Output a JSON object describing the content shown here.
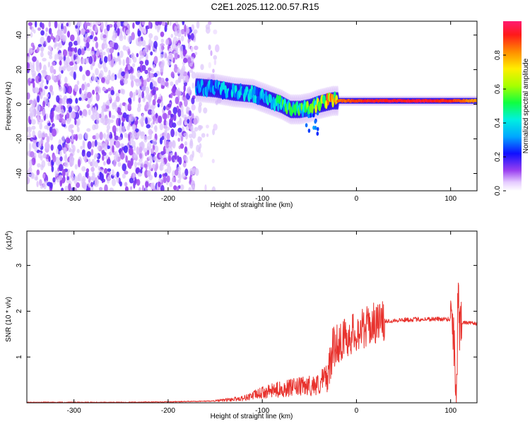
{
  "title": "C2E1.2025.112.00.57.R15",
  "chart_data": [
    {
      "type": "heatmap",
      "xlabel": "Height of straight line (km)",
      "ylabel": "Frequency (Hz)",
      "xlim": [
        -350,
        128
      ],
      "ylim": [
        -50,
        48
      ],
      "xticks": [
        -300,
        -200,
        -100,
        0,
        100
      ],
      "yticks": [
        -40,
        -20,
        0,
        20,
        40
      ],
      "colorbar": {
        "label": "Normalized spectral amplitude",
        "range": [
          0.0,
          1.0
        ],
        "ticks": [
          0.0,
          0.2,
          0.4,
          0.6,
          0.8
        ],
        "colormap": "rainbow"
      },
      "regions": [
        {
          "x_range": [
            -350,
            -172
          ],
          "y_range": [
            -50,
            48
          ],
          "amplitude": 0.12,
          "pattern": "scattered speckle"
        },
        {
          "x_range": [
            -172,
            -145
          ],
          "y_range": [
            -50,
            48
          ],
          "amplitude": 0.05,
          "pattern": "sparse speckle"
        }
      ],
      "ridge": [
        {
          "x": -170,
          "y": 10,
          "amp": 0.35
        },
        {
          "x": -150,
          "y": 9,
          "amp": 0.38
        },
        {
          "x": -130,
          "y": 7,
          "amp": 0.4
        },
        {
          "x": -110,
          "y": 6,
          "amp": 0.4
        },
        {
          "x": -95,
          "y": 3,
          "amp": 0.45
        },
        {
          "x": -80,
          "y": 0,
          "amp": 0.5
        },
        {
          "x": -70,
          "y": -3,
          "amp": 0.55
        },
        {
          "x": -60,
          "y": -3,
          "amp": 0.55
        },
        {
          "x": -50,
          "y": -2,
          "amp": 0.6
        },
        {
          "x": -40,
          "y": 0,
          "amp": 0.7
        },
        {
          "x": -25,
          "y": 2,
          "amp": 0.85
        },
        {
          "x": -10,
          "y": 2,
          "amp": 0.9
        },
        {
          "x": 10,
          "y": 2,
          "amp": 0.95
        },
        {
          "x": 40,
          "y": 2,
          "amp": 0.98
        },
        {
          "x": 70,
          "y": 2,
          "amp": 0.97
        },
        {
          "x": 95,
          "y": 2,
          "amp": 0.95
        },
        {
          "x": 110,
          "y": 2,
          "amp": 0.9
        },
        {
          "x": 128,
          "y": 2,
          "amp": 0.85
        }
      ]
    },
    {
      "type": "line",
      "xlabel": "Height of straight line (km)",
      "ylabel": "SNR (10 * v/v)",
      "exponent_label": "(x10",
      "exponent": "4",
      "exponent_close": ")",
      "xlim": [
        -350,
        128
      ],
      "ylim": [
        0,
        3.75
      ],
      "xticks": [
        -300,
        -200,
        -100,
        0,
        100
      ],
      "yticks": [
        1,
        2,
        3
      ],
      "color": "#e8322d",
      "series": [
        {
          "x": [
            -350,
            -300,
            -250,
            -200,
            -150,
            -120,
            -100,
            -80,
            -60,
            -40,
            -30,
            -25,
            -20,
            -10,
            0,
            10,
            20,
            30,
            40,
            60,
            80,
            100,
            103,
            106,
            108,
            110,
            112,
            115,
            128
          ],
          "y": [
            0.01,
            0.01,
            0.01,
            0.02,
            0.04,
            0.1,
            0.22,
            0.3,
            0.35,
            0.4,
            0.6,
            1.2,
            1.3,
            1.45,
            1.55,
            1.65,
            1.75,
            1.78,
            1.8,
            1.82,
            1.83,
            1.83,
            1.7,
            0.2,
            2.3,
            1.8,
            1.76,
            1.75,
            1.73
          ]
        }
      ]
    }
  ]
}
